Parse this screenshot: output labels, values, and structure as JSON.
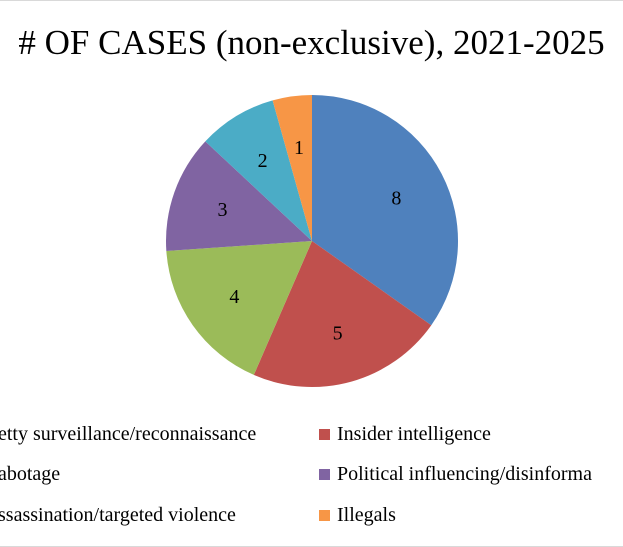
{
  "chart_data": {
    "type": "pie",
    "title": "# OF CASES (non-exclusive), 2021-2025",
    "categories": [
      "Petty surveillance/reconnaissance",
      "Insider intelligence",
      "Sabotage",
      "Political influencing/disinformation",
      "Assassination/targeted violence",
      "Illegals"
    ],
    "values": [
      8,
      5,
      4,
      3,
      2,
      1
    ],
    "data_labels": [
      "8",
      "5",
      "4",
      "3",
      "2",
      "1"
    ],
    "colors": [
      "#4F81BD",
      "#C0504D",
      "#9BBB59",
      "#8064A2",
      "#4BACC6",
      "#F79646"
    ],
    "legend_position": "bottom",
    "legend_text": [
      "etty surveillance/reconnaissance",
      "Insider intelligence",
      "abotage",
      "Political influencing/disinforma",
      "ssassination/targeted violence",
      "Illegals"
    ]
  }
}
